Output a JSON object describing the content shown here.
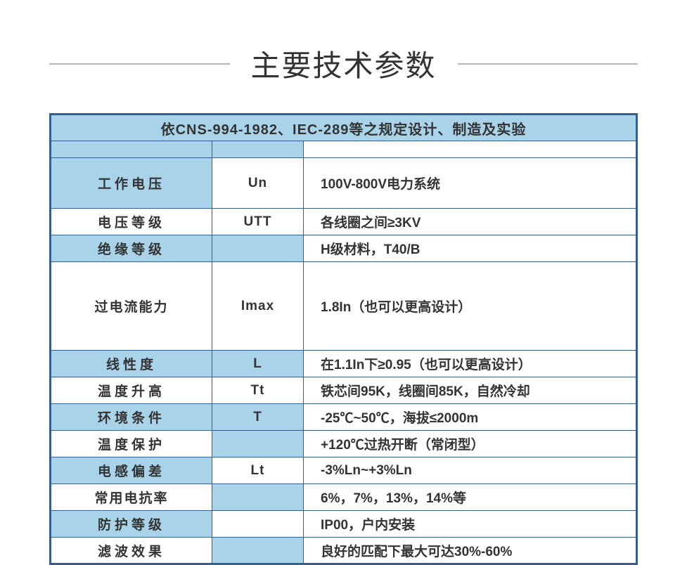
{
  "colors": {
    "header_bg": "#a8d3e8",
    "border": "#365f91",
    "text": "#333333",
    "line": "#b8b8b8",
    "white": "#ffffff"
  },
  "title": "主要技术参数",
  "header_text": "依CNS-994-1982、IEC-289等之规定设计、制造及实验",
  "rows": [
    {
      "label": "工作电压",
      "symbol": "Un",
      "desc": "100V-800V电力系统",
      "label_bg": "b",
      "sym_bg": "w",
      "h": "tall"
    },
    {
      "label": "电压等级",
      "symbol": "UTT",
      "desc": "各线圈之间≥3KV",
      "label_bg": "w",
      "sym_bg": "w",
      "h": "norm"
    },
    {
      "label": "绝缘等级",
      "symbol": "",
      "desc": "H级材料，T40/B",
      "label_bg": "b",
      "sym_bg": "b",
      "h": "norm"
    },
    {
      "label": "过电流能力",
      "symbol": "Imax",
      "desc": "1.8In（也可以更高设计）",
      "label_bg": "w",
      "sym_bg": "w",
      "h": "xtall"
    },
    {
      "label": "线性度",
      "symbol": "L",
      "desc": "在1.1In下≥0.95（也可以更高设计）",
      "label_bg": "b",
      "sym_bg": "b",
      "h": "norm"
    },
    {
      "label": "温度升高",
      "symbol": "Tt",
      "desc": "铁芯间95K，线圈间85K，自然冷却",
      "label_bg": "w",
      "sym_bg": "w",
      "h": "norm"
    },
    {
      "label": "环境条件",
      "symbol": "T",
      "desc": "-25℃~50℃，海拔≤2000m",
      "label_bg": "b",
      "sym_bg": "b",
      "h": "norm"
    },
    {
      "label": "温度保护",
      "symbol": "",
      "desc": "+120℃过热开断（常闭型）",
      "label_bg": "w",
      "sym_bg": "b",
      "h": "norm"
    },
    {
      "label": "电感偏差",
      "symbol": "Lt",
      "desc": "-3%Ln~+3%Ln",
      "label_bg": "b",
      "sym_bg": "w",
      "h": "norm"
    },
    {
      "label": "常用电抗率",
      "symbol": "",
      "desc": "6%，7%，13%，14%等",
      "label_bg": "w",
      "sym_bg": "b",
      "h": "norm"
    },
    {
      "label": "防护等级",
      "symbol": "",
      "desc": "IP00，户内安装",
      "label_bg": "b",
      "sym_bg": "w",
      "h": "norm"
    },
    {
      "label": "滤波效果",
      "symbol": "",
      "desc": "良好的匹配下最大可达30%-60%",
      "label_bg": "w",
      "sym_bg": "b",
      "h": "norm"
    }
  ]
}
